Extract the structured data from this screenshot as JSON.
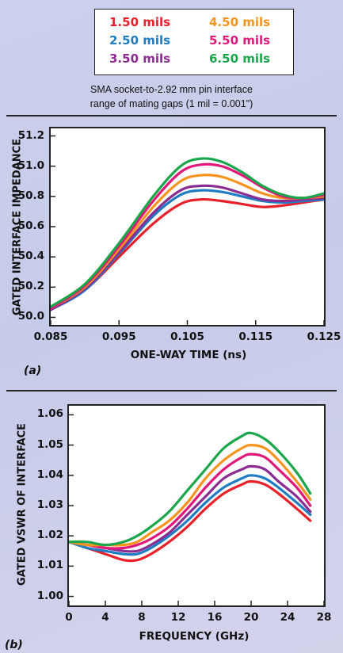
{
  "legend": [
    {
      "label": "1.50 mils",
      "color": "#e8202a"
    },
    {
      "label": "4.50 mils",
      "color": "#f7941d"
    },
    {
      "label": "2.50 mils",
      "color": "#1f7cc3"
    },
    {
      "label": "5.50 mils",
      "color": "#e0187a"
    },
    {
      "label": "3.50 mils",
      "color": "#8a2c91"
    },
    {
      "label": "6.50 mils",
      "color": "#1aa64a"
    }
  ],
  "caption": {
    "line1": "SMA socket-to-2.92 mm pin interface",
    "line2": "range of mating gaps (1 mil = 0.001\")"
  },
  "chart_data": [
    {
      "type": "line",
      "panel": "(a)",
      "xlabel": "ONE-WAY TIME (ns)",
      "ylabel": "GATED INTERFACE IMPEDANCE",
      "xlim": [
        0.085,
        0.125
      ],
      "ylim": [
        49.95,
        51.25
      ],
      "xticks": [
        "0.085",
        "0.095",
        "0.105",
        "0.115",
        "0.125"
      ],
      "yticks": [
        "51.2",
        "51.0",
        "50.8",
        "50.6",
        "50.4",
        "50.2",
        "50.0"
      ],
      "x": [
        0.085,
        0.09,
        0.095,
        0.1,
        0.104,
        0.107,
        0.11,
        0.113,
        0.116,
        0.119,
        0.122,
        0.125
      ],
      "series": [
        {
          "name": "1.50 mils",
          "color": "#e8202a",
          "values": [
            50.05,
            50.18,
            50.4,
            50.62,
            50.75,
            50.78,
            50.77,
            50.75,
            50.73,
            50.74,
            50.76,
            50.78
          ]
        },
        {
          "name": "2.50 mils",
          "color": "#1f7cc3",
          "values": [
            50.05,
            50.18,
            50.42,
            50.67,
            50.81,
            50.84,
            50.83,
            50.8,
            50.77,
            50.76,
            50.77,
            50.78
          ]
        },
        {
          "name": "3.50 mils",
          "color": "#8a2c91",
          "values": [
            50.05,
            50.19,
            50.43,
            50.69,
            50.84,
            50.87,
            50.86,
            50.82,
            50.78,
            50.77,
            50.78,
            50.79
          ]
        },
        {
          "name": "4.50 mils",
          "color": "#f7941d",
          "values": [
            50.06,
            50.2,
            50.45,
            50.73,
            50.9,
            50.94,
            50.93,
            50.88,
            50.82,
            50.79,
            50.79,
            50.8
          ]
        },
        {
          "name": "5.50 mils",
          "color": "#e0187a",
          "values": [
            50.06,
            50.21,
            50.47,
            50.77,
            50.96,
            51.01,
            51.0,
            50.94,
            50.86,
            50.8,
            50.79,
            50.81
          ]
        },
        {
          "name": "6.50 mils",
          "color": "#1aa64a",
          "values": [
            50.07,
            50.22,
            50.49,
            50.8,
            51.0,
            51.05,
            51.03,
            50.96,
            50.87,
            50.81,
            50.79,
            50.82
          ]
        }
      ]
    },
    {
      "type": "line",
      "panel": "(b)",
      "xlabel": "FREQUENCY (GHz)",
      "ylabel": "GATED VSWR OF INTERFACE",
      "xlim": [
        0,
        28
      ],
      "ylim": [
        0.997,
        1.063
      ],
      "xticks": [
        "0",
        "4",
        "8",
        "12",
        "16",
        "20",
        "24",
        "28"
      ],
      "yticks": [
        "1.06",
        "1.05",
        "1.04",
        "1.03",
        "1.02",
        "1.01",
        "1.00"
      ],
      "x": [
        0,
        2,
        4,
        6,
        7.5,
        9,
        11,
        13,
        15,
        17,
        19,
        20,
        21.5,
        23,
        25,
        26.5
      ],
      "series": [
        {
          "name": "1.50 mils",
          "color": "#e8202a",
          "values": [
            1.018,
            1.016,
            1.014,
            1.012,
            1.012,
            1.014,
            1.018,
            1.023,
            1.029,
            1.034,
            1.037,
            1.038,
            1.037,
            1.034,
            1.029,
            1.025
          ]
        },
        {
          "name": "2.50 mils",
          "color": "#1f7cc3",
          "values": [
            1.018,
            1.016,
            1.015,
            1.014,
            1.014,
            1.016,
            1.02,
            1.025,
            1.031,
            1.036,
            1.039,
            1.04,
            1.039,
            1.036,
            1.031,
            1.027
          ]
        },
        {
          "name": "3.50 mils",
          "color": "#8a2c91",
          "values": [
            1.018,
            1.017,
            1.016,
            1.015,
            1.015,
            1.017,
            1.021,
            1.027,
            1.033,
            1.039,
            1.042,
            1.043,
            1.042,
            1.038,
            1.033,
            1.028
          ]
        },
        {
          "name": "5.50 mils",
          "color": "#e0187a",
          "values": [
            1.018,
            1.017,
            1.016,
            1.016,
            1.017,
            1.019,
            1.023,
            1.029,
            1.036,
            1.042,
            1.046,
            1.047,
            1.046,
            1.042,
            1.036,
            1.03
          ]
        },
        {
          "name": "4.50 mils",
          "color": "#f7941d",
          "values": [
            1.018,
            1.017,
            1.017,
            1.017,
            1.018,
            1.021,
            1.025,
            1.031,
            1.039,
            1.045,
            1.049,
            1.05,
            1.049,
            1.045,
            1.038,
            1.032
          ]
        },
        {
          "name": "6.50 mils",
          "color": "#1aa64a",
          "values": [
            1.018,
            1.018,
            1.017,
            1.018,
            1.02,
            1.023,
            1.028,
            1.035,
            1.042,
            1.049,
            1.053,
            1.054,
            1.052,
            1.048,
            1.041,
            1.034
          ]
        }
      ]
    }
  ]
}
